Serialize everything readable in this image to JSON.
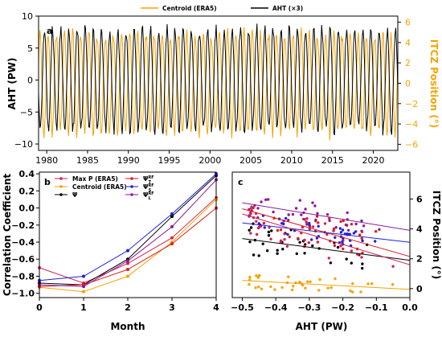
{
  "colors": {
    "orange": "#f5a300",
    "black": "#000000",
    "red": "#e31a1c",
    "blue": "#1f1fe0",
    "purple": "#8b1a9c",
    "crimson": "#d62050"
  },
  "chart_data": [
    {
      "panel": "a",
      "type": "line",
      "legend": [
        {
          "name": "Centroid (ERA5)",
          "color": "#f5a300"
        },
        {
          "name": "AHT (×3)",
          "color": "#000000"
        }
      ],
      "legend_position": "top-center",
      "ylabel": "AHT (PW)",
      "ylabel_right": "ITCZ Position (°)",
      "xlim": [
        1979,
        2023
      ],
      "ylim": [
        -11,
        10
      ],
      "ylim_right": [
        -6.6,
        6.6
      ],
      "xticks": [
        "1980",
        "1985",
        "1990",
        "1995",
        "2000",
        "2005",
        "2010",
        "2015",
        "2020"
      ],
      "yticks": [
        "−10",
        "−5",
        "0",
        "5",
        "10"
      ],
      "yticks_right": [
        "−6",
        "−4",
        "−2",
        "0",
        "2",
        "4",
        "6"
      ],
      "series": [
        {
          "name": "Centroid (ERA5)",
          "color": "#f5a300",
          "description": "monthly seasonal cycle",
          "amplitude_deg": 5.2,
          "period_years": 1
        },
        {
          "name": "AHT (×3)",
          "color": "#000000",
          "description": "monthly seasonal cycle",
          "amplitude_pw": 8.5,
          "period_years": 1
        }
      ]
    },
    {
      "panel": "b",
      "type": "line",
      "xlabel": "Month",
      "ylabel": "Correlation Coefficient",
      "xlim": [
        0,
        4
      ],
      "ylim": [
        -1.05,
        0.42
      ],
      "xticks": [
        "0",
        "1",
        "2",
        "3",
        "4"
      ],
      "yticks": [
        "−1.0",
        "−0.8",
        "−0.6",
        "−0.4",
        "−0.2",
        "0.0",
        "0.2",
        "0.4"
      ],
      "legend_position": "top-left",
      "series": [
        {
          "name": "Max P (ERA5)",
          "color": "#d62050",
          "x": [
            0,
            1,
            2,
            3,
            4
          ],
          "y": [
            -0.7,
            -0.88,
            -0.65,
            -0.35,
            0.12
          ]
        },
        {
          "name": "Centroid (ERA5)",
          "color": "#f5a300",
          "x": [
            0,
            1,
            2,
            3,
            4
          ],
          "y": [
            -0.93,
            -0.98,
            -0.8,
            -0.4,
            0.1
          ]
        },
        {
          "name": "Ψ",
          "color": "#000000",
          "x": [
            0,
            1,
            2,
            3,
            4
          ],
          "y": [
            -0.88,
            -0.9,
            -0.6,
            -0.1,
            0.38
          ]
        },
        {
          "name": "Ψ",
          "sup": "RF",
          "sub": "T",
          "color": "#e31a1c",
          "x": [
            0,
            1,
            2,
            3,
            4
          ],
          "y": [
            -0.92,
            -0.9,
            -0.72,
            -0.42,
            0.0
          ]
        },
        {
          "name": "Ψ",
          "sup": "RF",
          "sub": "S",
          "color": "#1f1fe0",
          "x": [
            0,
            1,
            2,
            3,
            4
          ],
          "y": [
            -0.85,
            -0.8,
            -0.5,
            -0.07,
            0.4
          ]
        },
        {
          "name": "Ψ",
          "sup": "RF",
          "sub": "L",
          "color": "#8b1a9c",
          "x": [
            0,
            1,
            2,
            3,
            4
          ],
          "y": [
            -0.9,
            -0.92,
            -0.62,
            -0.22,
            0.33
          ]
        }
      ]
    },
    {
      "panel": "c",
      "type": "scatter",
      "xlabel": "AHT (PW)",
      "ylabel_right": "ITCZ Position (°)",
      "xlim": [
        -0.53,
        0.0
      ],
      "ylim": [
        -0.6,
        7.8
      ],
      "xticks": [
        "−0.5",
        "−0.4",
        "−0.3",
        "−0.2",
        "−0.1",
        "0.0"
      ],
      "yticks_right": [
        "0",
        "2",
        "4",
        "6"
      ],
      "series": [
        {
          "name": "Centroid (ERA5)",
          "color": "#f5a300",
          "center_y": 0.3,
          "spread": 0.55,
          "fit": {
            "x": [
              -0.5,
              0.0
            ],
            "y": [
              0.55,
              -0.05
            ]
          }
        },
        {
          "name": "Ψ",
          "color": "#000000",
          "center_y": 2.8,
          "spread": 1.1,
          "fit": {
            "x": [
              -0.5,
              0.0
            ],
            "y": [
              3.35,
              1.9
            ]
          }
        },
        {
          "name": "ΨT",
          "color": "#e31a1c",
          "center_y": 3.8,
          "spread": 1.2,
          "fit": {
            "x": [
              -0.5,
              0.0
            ],
            "y": [
              5.35,
              2.15
            ]
          }
        },
        {
          "name": "ΨS",
          "color": "#1f1fe0",
          "center_y": 3.6,
          "spread": 0.7,
          "fit": {
            "x": [
              -0.5,
              0.0
            ],
            "y": [
              4.4,
              3.1
            ]
          }
        },
        {
          "name": "ΨL",
          "color": "#8b1a9c",
          "center_y": 5.0,
          "spread": 0.9,
          "fit": {
            "x": [
              -0.5,
              0.0
            ],
            "y": [
              5.75,
              3.9
            ]
          }
        },
        {
          "name": "Max P (ERA5)",
          "color": "#d62050",
          "center_y": 4.6,
          "spread": 1.3,
          "fit": {
            "x": [
              -0.5,
              0.0
            ],
            "y": [
              5.0,
              1.6
            ]
          }
        }
      ]
    }
  ]
}
